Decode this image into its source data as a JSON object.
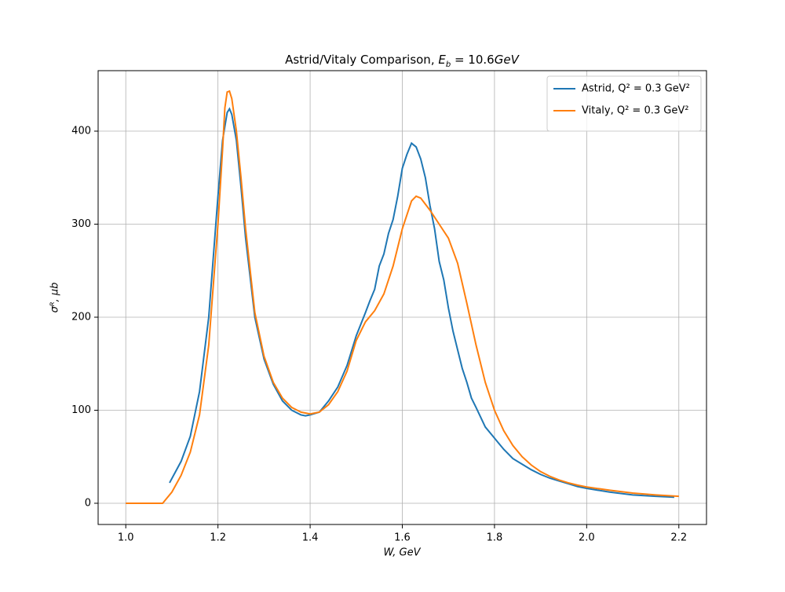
{
  "chart_data": {
    "type": "line",
    "title": [
      "Astrid/Vitaly Comparison, ",
      "E",
      "b",
      " = 10.6",
      "GeV"
    ],
    "x_label": "W, GeV",
    "y_label": "σᴿ, μb",
    "xlim": [
      0.94,
      2.26
    ],
    "ylim": [
      -22.8,
      465
    ],
    "xticks": [
      {
        "value": 1,
        "label": "1.0"
      },
      1.2,
      1.4,
      1.6,
      1.8,
      {
        "value": 2,
        "label": "2.0"
      },
      2.2
    ],
    "yticks": [
      0,
      100,
      200,
      300,
      400
    ],
    "grid": true,
    "legend": "upper right",
    "series": [
      {
        "name": "Astrid, Q² = 0.3 GeV²",
        "color": "#1f77b4",
        "x": [
          1.095,
          1.12,
          1.14,
          1.16,
          1.18,
          1.2,
          1.21,
          1.22,
          1.225,
          1.23,
          1.24,
          1.25,
          1.26,
          1.28,
          1.3,
          1.32,
          1.34,
          1.36,
          1.38,
          1.39,
          1.4,
          1.42,
          1.44,
          1.46,
          1.48,
          1.5,
          1.52,
          1.53,
          1.54,
          1.55,
          1.56,
          1.57,
          1.58,
          1.59,
          1.6,
          1.61,
          1.62,
          1.63,
          1.64,
          1.65,
          1.66,
          1.67,
          1.68,
          1.69,
          1.7,
          1.71,
          1.72,
          1.73,
          1.74,
          1.75,
          1.76,
          1.78,
          1.8,
          1.82,
          1.84,
          1.86,
          1.88,
          1.9,
          1.92,
          1.94,
          1.96,
          1.98,
          2.0,
          2.05,
          2.1,
          2.15,
          2.19
        ],
        "values": [
          22,
          45,
          72,
          120,
          200,
          330,
          390,
          420,
          424,
          418,
          390,
          340,
          285,
          200,
          155,
          128,
          110,
          100,
          95,
          94,
          95,
          98,
          110,
          125,
          148,
          180,
          205,
          218,
          230,
          255,
          268,
          290,
          305,
          330,
          360,
          375,
          387,
          383,
          370,
          350,
          320,
          295,
          260,
          240,
          210,
          185,
          165,
          145,
          130,
          113,
          103,
          82,
          70,
          58,
          48,
          42,
          36,
          31,
          27,
          24,
          21,
          18,
          16,
          12,
          9,
          7.5,
          6.5
        ]
      },
      {
        "name": "Vitaly, Q² = 0.3 GeV²",
        "color": "#ff7f0e",
        "x": [
          1.0,
          1.02,
          1.04,
          1.06,
          1.08,
          1.1,
          1.12,
          1.14,
          1.16,
          1.18,
          1.2,
          1.21,
          1.215,
          1.22,
          1.225,
          1.23,
          1.24,
          1.25,
          1.26,
          1.28,
          1.3,
          1.32,
          1.34,
          1.36,
          1.38,
          1.4,
          1.42,
          1.44,
          1.46,
          1.48,
          1.5,
          1.52,
          1.54,
          1.56,
          1.58,
          1.6,
          1.62,
          1.63,
          1.64,
          1.66,
          1.68,
          1.7,
          1.72,
          1.74,
          1.76,
          1.78,
          1.8,
          1.82,
          1.84,
          1.86,
          1.88,
          1.9,
          1.92,
          1.94,
          1.96,
          1.98,
          2.0,
          2.05,
          2.1,
          2.15,
          2.2
        ],
        "values": [
          0,
          0,
          0,
          0,
          0,
          12,
          30,
          55,
          95,
          170,
          300,
          380,
          425,
          442,
          443,
          435,
          400,
          350,
          295,
          205,
          158,
          130,
          113,
          103,
          98,
          96,
          98,
          106,
          120,
          142,
          175,
          195,
          207,
          225,
          255,
          295,
          325,
          330,
          328,
          315,
          300,
          285,
          258,
          215,
          170,
          130,
          100,
          78,
          62,
          50,
          41,
          34,
          29,
          25,
          22,
          19.5,
          17.5,
          14,
          11,
          9,
          7.5
        ]
      }
    ]
  }
}
